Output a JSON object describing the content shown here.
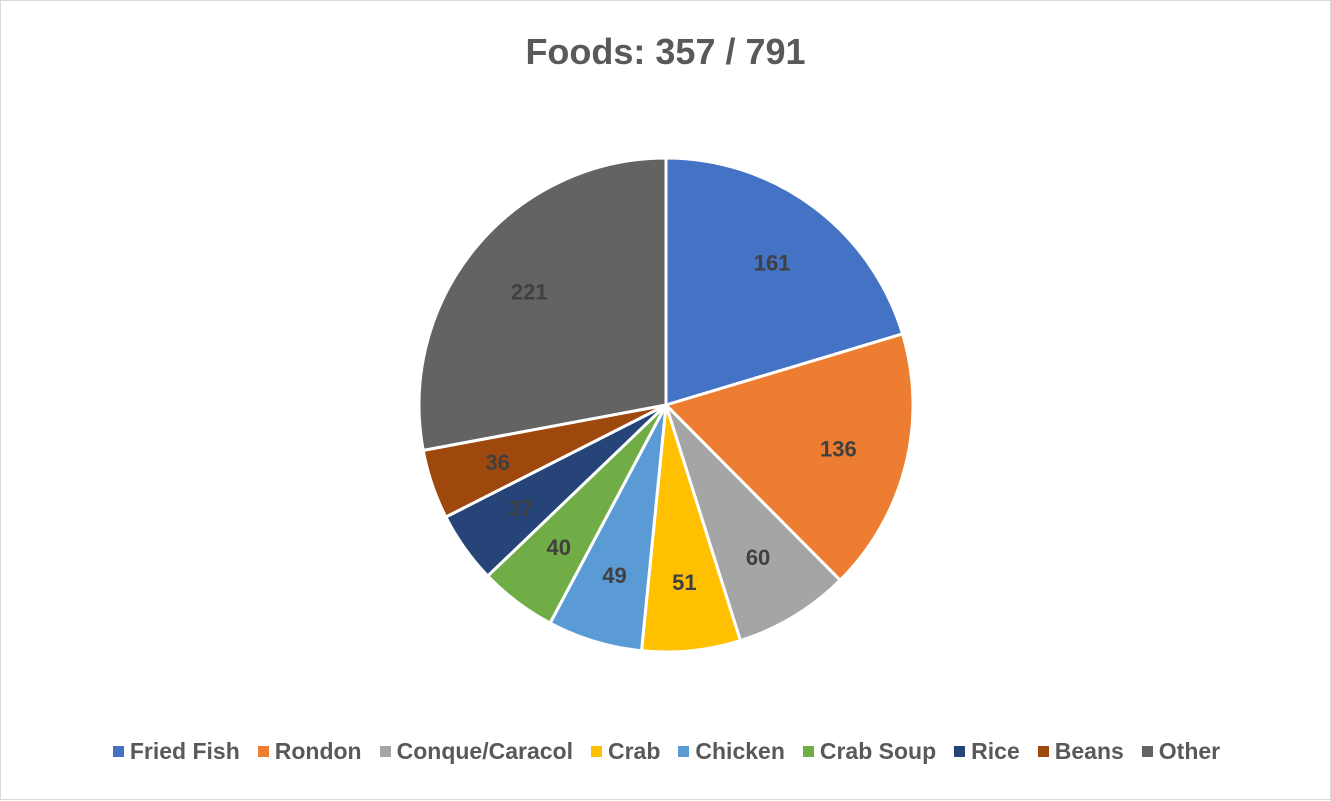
{
  "chart_data": {
    "type": "pie",
    "title": "Foods: 357 / 791",
    "categories": [
      "Fried Fish",
      "Rondon",
      "Conque/Caracol",
      "Crab",
      "Chicken",
      "Crab Soup",
      "Rice",
      "Beans",
      "Other"
    ],
    "values": [
      161,
      136,
      60,
      51,
      49,
      40,
      37,
      36,
      221
    ],
    "labels": [
      "161",
      "136",
      "60",
      "51",
      "49",
      "40",
      "37",
      "36",
      "221"
    ],
    "colors": [
      "#4472c4",
      "#ed7d31",
      "#a5a5a5",
      "#ffc000",
      "#5b9bd5",
      "#70ad47",
      "#264478",
      "#9e480e",
      "#636363"
    ],
    "label_color": "#404040",
    "legend_position": "bottom",
    "start_angle": "12 o'clock, clockwise"
  }
}
